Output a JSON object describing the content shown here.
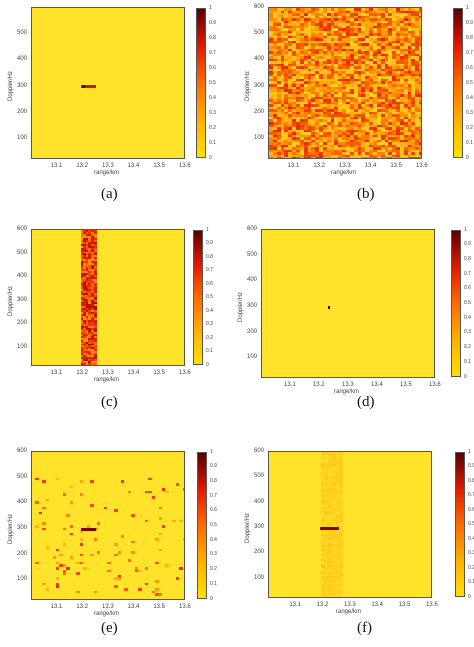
{
  "chart_data": [
    {
      "type": "heatmap",
      "panel": "a",
      "caption": "(a)",
      "xlabel": "range/km",
      "ylabel": "Doppler/Hz",
      "x_ticks": [
        "13.1",
        "13.2",
        "13.3",
        "13.4",
        "13.5",
        "13.6"
      ],
      "y_ticks": [
        "100",
        "200",
        "300",
        "400",
        "500"
      ],
      "xlim": [
        13.0,
        13.6
      ],
      "ylim": [
        20,
        600
      ],
      "colorbar_ticks": [
        "0",
        "0.1",
        "0.2",
        "0.3",
        "0.4",
        "0.5",
        "0.6",
        "0.7",
        "0.8",
        "0.9",
        "1"
      ],
      "background_value": 0.0,
      "features": [
        {
          "kind": "target",
          "x": 13.22,
          "y": 300,
          "width_km": 0.06,
          "value": 0.7
        },
        {
          "kind": "target",
          "x": 13.2,
          "y": 300,
          "width_km": 0.01,
          "value": 1.0
        }
      ]
    },
    {
      "type": "heatmap",
      "panel": "b",
      "caption": "(b)",
      "xlabel": "range/km",
      "ylabel": "Doppler/Hz",
      "x_ticks": [
        "13.1",
        "13.2",
        "13.3",
        "13.4",
        "13.5",
        "13.6"
      ],
      "y_ticks": [
        "100",
        "200",
        "300",
        "400",
        "500",
        "600"
      ],
      "xlim": [
        13.0,
        13.6
      ],
      "ylim": [
        20,
        600
      ],
      "colorbar_ticks": [
        "0",
        "0.1",
        "0.2",
        "0.3",
        "0.4",
        "0.5",
        "0.6",
        "0.7",
        "0.8",
        "0.9",
        "1"
      ],
      "background_value": "noise",
      "features": [
        {
          "kind": "noise",
          "value_range": [
            0.1,
            0.6
          ]
        }
      ]
    },
    {
      "type": "heatmap",
      "panel": "c",
      "caption": "(c)",
      "xlabel": "range/km",
      "ylabel": "Doppler/Hz",
      "x_ticks": [
        "13.1",
        "13.2",
        "13.3",
        "13.4",
        "13.5",
        "13.6"
      ],
      "y_ticks": [
        "100",
        "200",
        "300",
        "400",
        "500",
        "600"
      ],
      "xlim": [
        13.0,
        13.6
      ],
      "ylim": [
        20,
        600
      ],
      "colorbar_ticks": [
        "0",
        "0.1",
        "0.2",
        "0.3",
        "0.4",
        "0.5",
        "0.6",
        "0.7",
        "0.8",
        "0.9",
        "1"
      ],
      "background_value": 0.0,
      "features": [
        {
          "kind": "range-strip",
          "x_from": 13.19,
          "x_to": 13.25,
          "value_range": [
            0.3,
            0.8
          ]
        }
      ]
    },
    {
      "type": "heatmap",
      "panel": "d",
      "caption": "(d)",
      "xlabel": "range/km",
      "ylabel": "Doppler/Hz",
      "x_ticks": [
        "13.1",
        "13.2",
        "13.3",
        "13.4",
        "13.5",
        "13.6"
      ],
      "y_ticks": [
        "100",
        "200",
        "300",
        "400",
        "500",
        "600"
      ],
      "xlim": [
        13.0,
        13.6
      ],
      "ylim": [
        20,
        600
      ],
      "colorbar_ticks": [
        "0",
        "0.1",
        "0.2",
        "0.3",
        "0.4",
        "0.5",
        "0.6",
        "0.7",
        "0.8",
        "0.9",
        "1"
      ],
      "background_value": 0.0,
      "features": [
        {
          "kind": "target",
          "x": 13.23,
          "y": 300,
          "width_km": 0.006,
          "value": 1.0
        }
      ]
    },
    {
      "type": "heatmap",
      "panel": "e",
      "caption": "(e)",
      "xlabel": "range/km",
      "ylabel": "Doppler/Hz",
      "x_ticks": [
        "13.1",
        "13.2",
        "13.3",
        "13.4",
        "13.5",
        "13.6"
      ],
      "y_ticks": [
        "100",
        "200",
        "300",
        "400",
        "500",
        "600"
      ],
      "xlim": [
        13.0,
        13.6
      ],
      "ylim": [
        20,
        600
      ],
      "colorbar_ticks": [
        "0",
        "0.1",
        "0.2",
        "0.3",
        "0.4",
        "0.5",
        "0.6",
        "0.7",
        "0.8",
        "0.9",
        "1"
      ],
      "background_value": 0.0,
      "features": [
        {
          "kind": "doppler-band-clutter",
          "y_from": 40,
          "y_to": 500,
          "value_range": [
            0.2,
            0.6
          ]
        },
        {
          "kind": "target",
          "x": 13.22,
          "y": 300,
          "width_km": 0.06,
          "value": 0.9
        }
      ]
    },
    {
      "type": "heatmap",
      "panel": "f",
      "caption": "(f)",
      "xlabel": "range/km",
      "ylabel": "Doppler/Hz",
      "x_ticks": [
        "13.1",
        "13.2",
        "13.3",
        "13.4",
        "13.5",
        "13.6"
      ],
      "y_ticks": [
        "100",
        "200",
        "300",
        "400",
        "500",
        "600"
      ],
      "xlim": [
        13.0,
        13.6
      ],
      "ylim": [
        20,
        600
      ],
      "colorbar_ticks": [
        "0",
        "0.1",
        "0.2",
        "0.3",
        "0.4",
        "0.5",
        "0.6",
        "0.7",
        "0.8",
        "0.9",
        "1"
      ],
      "background_value": 0.0,
      "features": [
        {
          "kind": "faint-range-strip",
          "x_from": 13.19,
          "x_to": 13.27,
          "value_range": [
            0.05,
            0.15
          ]
        },
        {
          "kind": "target",
          "x": 13.22,
          "y": 300,
          "width_km": 0.07,
          "value": 0.9
        }
      ]
    }
  ]
}
